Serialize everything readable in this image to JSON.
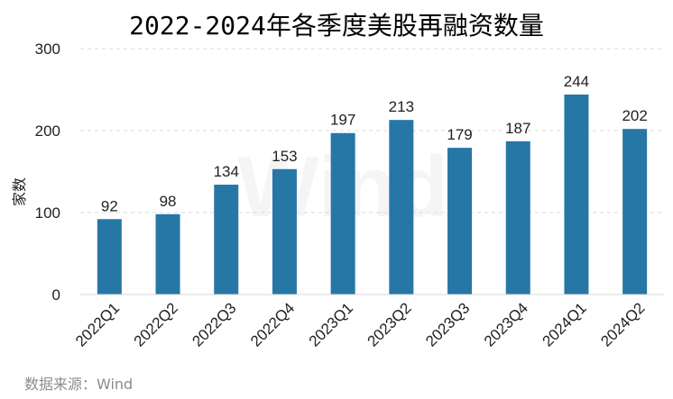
{
  "chart_data": {
    "type": "bar",
    "title": "2022-2024年各季度美股再融资数量",
    "ylabel": "家数",
    "xlabel": "",
    "categories": [
      "2022Q1",
      "2022Q2",
      "2022Q3",
      "2022Q4",
      "2023Q1",
      "2023Q2",
      "2023Q3",
      "2023Q4",
      "2024Q1",
      "2024Q2"
    ],
    "values": [
      92,
      98,
      134,
      153,
      197,
      213,
      179,
      187,
      244,
      202
    ],
    "ylim": [
      0,
      300
    ],
    "yticks": [
      0,
      100,
      200,
      300
    ],
    "grid": true,
    "bar_color": "#2677a6"
  },
  "source": "数据来源：Wind",
  "watermark": "Wind"
}
